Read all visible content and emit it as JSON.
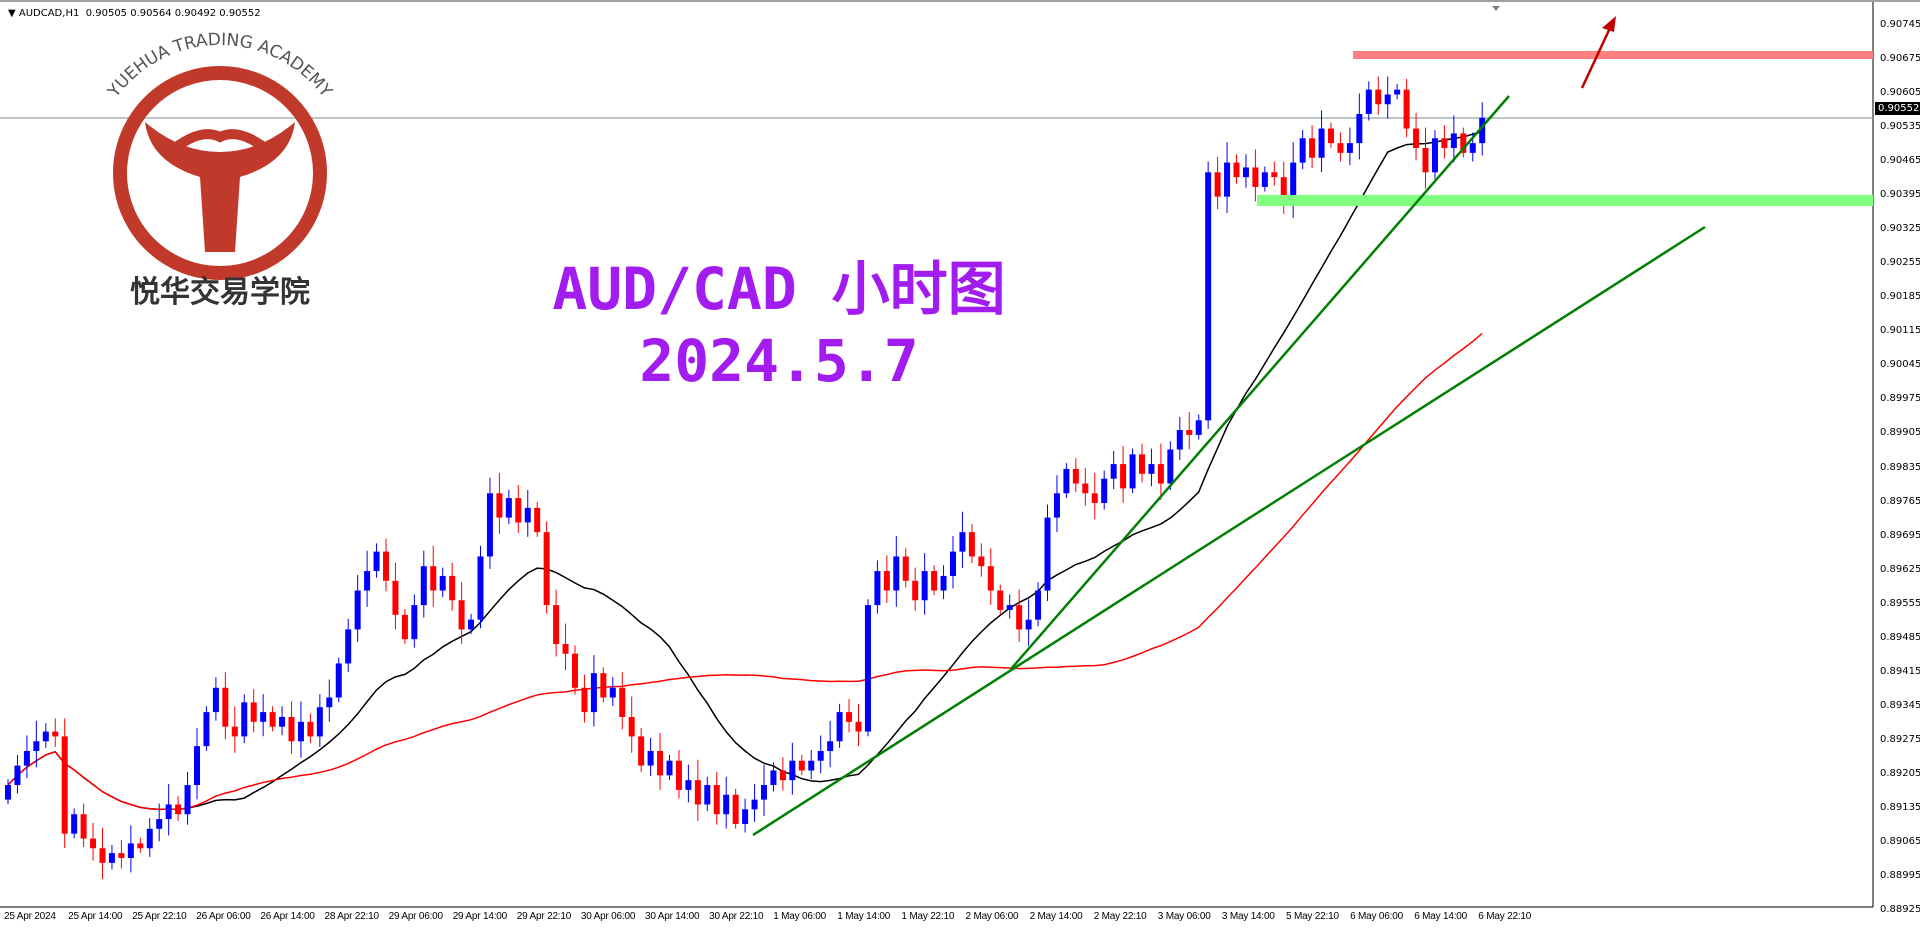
{
  "header": {
    "symbol": "AUDCAD,H1",
    "ohlc": "0.90505 0.90564 0.90492 0.90552"
  },
  "overlay": {
    "title": "AUD/CAD 小时图",
    "date": "2024.5.7"
  },
  "logo": {
    "text_en": "YUEHUA TRADING ACADEMY",
    "text_cn": "悦华交易学院",
    "color": "#c0392b"
  },
  "current_price": "0.90552",
  "colors": {
    "bull": "#0000ff",
    "bear": "#ff0000",
    "ma_fast": "#000000",
    "ma_slow": "#ff0000",
    "resistance": "#ff8080",
    "support": "#80ff80",
    "trendline": "#008000",
    "arrow": "#c00000"
  },
  "chart_data": {
    "type": "candlestick",
    "y_ticks": [
      "0.90745",
      "0.90675",
      "0.90605",
      "0.90535",
      "0.90465",
      "0.90395",
      "0.90325",
      "0.90255",
      "0.90185",
      "0.90115",
      "0.90045",
      "0.89975",
      "0.89905",
      "0.89835",
      "0.89765",
      "0.89695",
      "0.89625",
      "0.89555",
      "0.89485",
      "0.89415",
      "0.89345",
      "0.89275",
      "0.89205",
      "0.89135",
      "0.89065",
      "0.88995",
      "0.88925"
    ],
    "ylim": [
      0.88925,
      0.90745
    ],
    "x_ticks": [
      "25 Apr 2024",
      "25 Apr 14:00",
      "25 Apr 22:10",
      "26 Apr 06:00",
      "26 Apr 14:00",
      "28 Apr 22:10",
      "29 Apr 06:00",
      "29 Apr 14:00",
      "29 Apr 22:10",
      "30 Apr 06:00",
      "30 Apr 14:00",
      "30 Apr 22:10",
      "1 May 06:00",
      "1 May 14:00",
      "1 May 22:10",
      "2 May 06:00",
      "2 May 14:00",
      "2 May 22:10",
      "3 May 06:00",
      "3 May 14:00",
      "5 May 22:10",
      "6 May 06:00",
      "6 May 14:00",
      "6 May 22:10"
    ],
    "closes": [
      0.8918,
      0.8922,
      0.8925,
      0.8927,
      0.8929,
      0.8928,
      0.8908,
      0.8912,
      0.8907,
      0.8905,
      0.8902,
      0.8904,
      0.8903,
      0.8906,
      0.8905,
      0.8909,
      0.8911,
      0.8914,
      0.8912,
      0.8918,
      0.8926,
      0.8933,
      0.8938,
      0.893,
      0.8928,
      0.8935,
      0.8931,
      0.8933,
      0.893,
      0.8932,
      0.8927,
      0.8931,
      0.8928,
      0.8934,
      0.8936,
      0.8943,
      0.895,
      0.8958,
      0.8962,
      0.8966,
      0.896,
      0.8953,
      0.8948,
      0.8955,
      0.8963,
      0.8958,
      0.8961,
      0.8956,
      0.895,
      0.8952,
      0.8965,
      0.8978,
      0.8973,
      0.8977,
      0.8972,
      0.8975,
      0.897,
      0.8955,
      0.8947,
      0.8945,
      0.8938,
      0.8933,
      0.8941,
      0.8936,
      0.8938,
      0.8932,
      0.8928,
      0.8922,
      0.8925,
      0.892,
      0.8923,
      0.8917,
      0.8919,
      0.8914,
      0.8918,
      0.8912,
      0.8916,
      0.891,
      0.8913,
      0.8915,
      0.8918,
      0.8921,
      0.8919,
      0.8923,
      0.8921,
      0.8923,
      0.8925,
      0.8927,
      0.8933,
      0.8931,
      0.8929,
      0.8955,
      0.8962,
      0.8958,
      0.8965,
      0.896,
      0.8956,
      0.8962,
      0.8958,
      0.8961,
      0.8966,
      0.897,
      0.8965,
      0.8963,
      0.8958,
      0.8954,
      0.8955,
      0.895,
      0.8952,
      0.8958,
      0.8973,
      0.8978,
      0.8983,
      0.898,
      0.8978,
      0.8976,
      0.8981,
      0.8984,
      0.8979,
      0.8986,
      0.8982,
      0.8984,
      0.898,
      0.8987,
      0.8991,
      0.899,
      0.8993,
      0.9044,
      0.9039,
      0.9046,
      0.9043,
      0.9045,
      0.9041,
      0.9044,
      0.9043,
      0.9038,
      0.9046,
      0.9051,
      0.9047,
      0.9053,
      0.905,
      0.9048,
      0.905,
      0.9056,
      0.9061,
      0.9058,
      0.906,
      0.9061,
      0.9053,
      0.9049,
      0.9044,
      0.9051,
      0.9049,
      0.9052,
      0.9048,
      0.905,
      0.90552
    ],
    "resistance_level": 0.90675,
    "support_level": 0.9038,
    "grid": false
  }
}
